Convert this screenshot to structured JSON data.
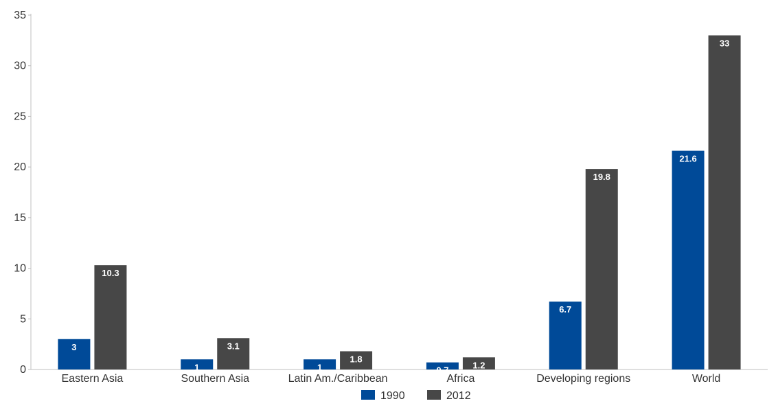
{
  "chart_data": {
    "type": "bar",
    "title": "",
    "xlabel": "",
    "ylabel": "",
    "ylim": [
      0,
      35
    ],
    "yticks": [
      0,
      5,
      10,
      15,
      20,
      25,
      30,
      35
    ],
    "grid": false,
    "legend_position": "bottom",
    "categories": [
      "Eastern Asia",
      "Southern Asia",
      "Latin Am./Caribbean",
      "Africa",
      "Developing regions",
      "World"
    ],
    "series": [
      {
        "name": "1990",
        "color": "#004a98",
        "values": [
          3,
          1,
          1,
          0.7,
          6.7,
          21.6
        ],
        "labels": [
          "3",
          "1",
          "1",
          "0.7",
          "6.7",
          "21.6"
        ]
      },
      {
        "name": "2012",
        "color": "#474747",
        "values": [
          10.3,
          3.1,
          1.8,
          1.2,
          19.8,
          33
        ],
        "labels": [
          "10.3",
          "3.1",
          "1.8",
          "1.2",
          "19.8",
          "33"
        ]
      }
    ]
  }
}
